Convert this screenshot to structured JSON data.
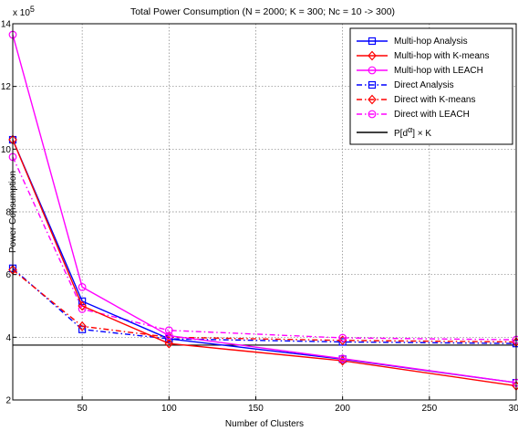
{
  "chart_data": {
    "type": "line",
    "title": "Total Power Consumption (N = 2000; K = 300; Nc = 10 -> 300)",
    "xlabel": "Number of Clusters",
    "ylabel": "Power Consumption",
    "y_multiplier_label": "x 10",
    "y_multiplier_exponent": "5",
    "xlim": [
      10,
      300
    ],
    "ylim": [
      2,
      14
    ],
    "xticks": [
      50,
      100,
      150,
      200,
      250,
      300
    ],
    "xtick_labels": [
      "50",
      "100",
      "150",
      "200",
      "250",
      "300"
    ],
    "yticks": [
      2,
      4,
      6,
      8,
      10,
      12,
      14
    ],
    "ytick_labels": [
      "2",
      "4",
      "6",
      "8",
      "10",
      "12",
      "14"
    ],
    "grid": true,
    "legend_position": "top-right",
    "x": [
      10,
      50,
      100,
      200,
      300
    ],
    "series": [
      {
        "name": "Multi-hop Analysis",
        "color": "#0000ff",
        "dash": "solid",
        "marker": "square",
        "values": [
          10.3,
          5.15,
          3.95,
          3.3,
          2.55
        ]
      },
      {
        "name": "Multi-hop with K-means",
        "color": "#ff0000",
        "dash": "solid",
        "marker": "diamond",
        "values": [
          10.3,
          5.0,
          3.8,
          3.25,
          2.45
        ]
      },
      {
        "name": "Multi-hop with LEACH",
        "color": "#ff00ff",
        "dash": "solid",
        "marker": "circle",
        "values": [
          13.65,
          5.6,
          4.05,
          3.32,
          2.55
        ]
      },
      {
        "name": "Direct Analysis",
        "color": "#0000ff",
        "dash": "dashdot",
        "marker": "square",
        "values": [
          6.2,
          4.25,
          3.95,
          3.85,
          3.8
        ]
      },
      {
        "name": "Direct with K-means",
        "color": "#ff0000",
        "dash": "dashdot",
        "marker": "diamond",
        "values": [
          6.15,
          4.35,
          4.0,
          3.9,
          3.85
        ]
      },
      {
        "name": "Direct with LEACH",
        "color": "#ff00ff",
        "dash": "dashdot",
        "marker": "circle",
        "values": [
          9.75,
          4.9,
          4.22,
          3.98,
          3.92
        ]
      },
      {
        "name": "P[d^α] × K",
        "color": "#000000",
        "dash": "solid",
        "marker": "none",
        "values": [
          3.75,
          3.75,
          3.75,
          3.75,
          3.75
        ]
      }
    ],
    "legend_labels": {
      "l1": "Multi-hop Analysis",
      "l2": "Multi-hop with K-means",
      "l3": "Multi-hop with LEACH",
      "l4": "Direct Analysis",
      "l5": "Direct with K-means",
      "l6": "Direct with LEACH",
      "l7_prefix": "P[d",
      "l7_sup": "α",
      "l7_suffix": "] × K"
    }
  }
}
